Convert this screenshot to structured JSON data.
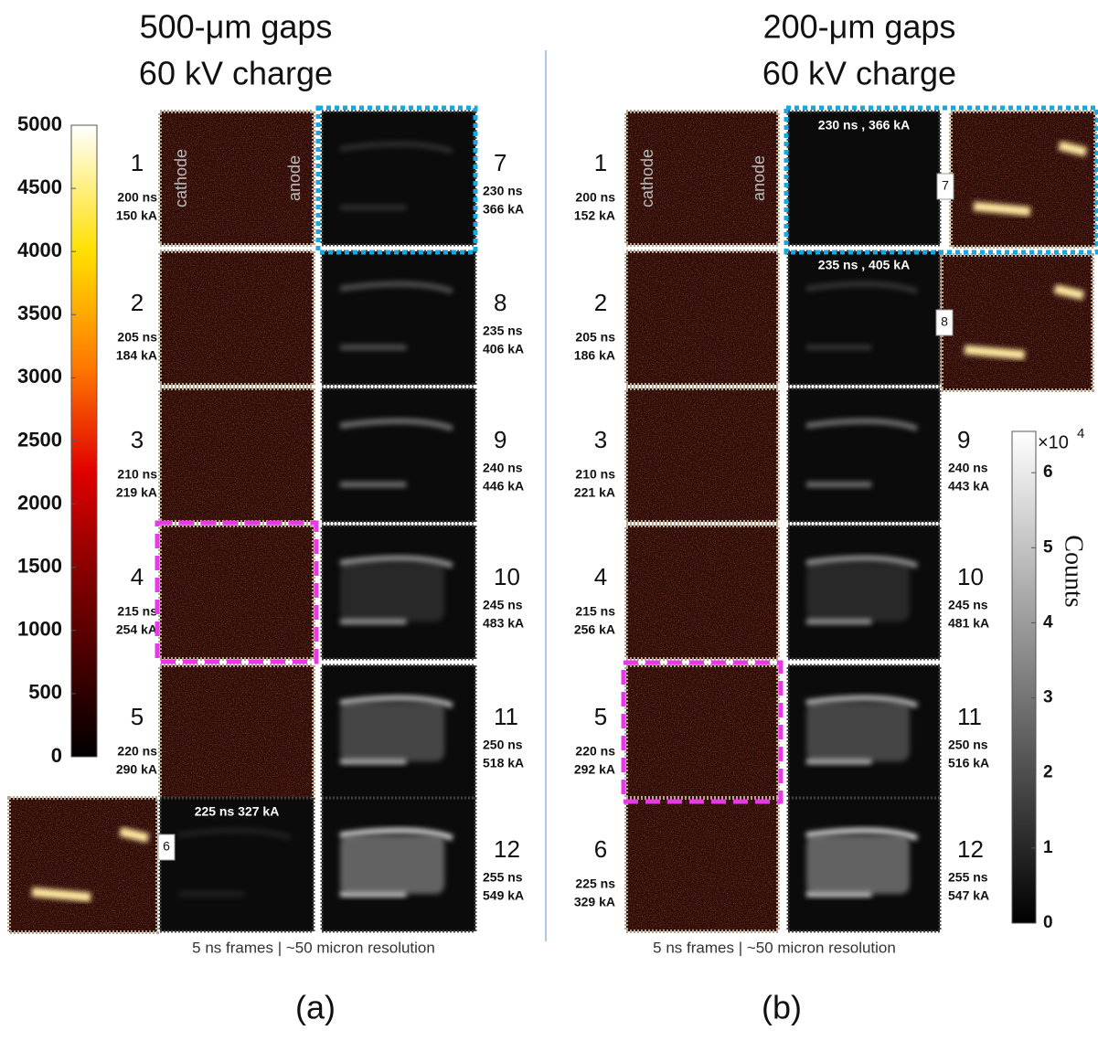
{
  "panels": [
    {
      "title_lines": [
        "500-μm gaps",
        "60 kV charge"
      ],
      "cathode": "cathode",
      "anode": "anode",
      "colorbar": {
        "lim": [
          0,
          5000
        ],
        "ticks": [
          0,
          500,
          1000,
          1500,
          2000,
          2500,
          3000,
          3500,
          4000,
          4500,
          5000
        ]
      },
      "frames": [
        {
          "number": "1",
          "time": "200 ns",
          "current": "150 kA"
        },
        {
          "number": "2",
          "time": "205 ns",
          "current": "184 kA"
        },
        {
          "number": "3",
          "time": "210 ns",
          "current": "219 kA"
        },
        {
          "number": "4",
          "time": "215 ns",
          "current": "254 kA"
        },
        {
          "number": "5",
          "time": "220 ns",
          "current": "290 kA"
        },
        {
          "number": "6",
          "caption": "225 ns 327 kA"
        },
        {
          "number": "7",
          "time": "230 ns",
          "current": "366 kA"
        },
        {
          "number": "8",
          "time": "235 ns",
          "current": "406 kA"
        },
        {
          "number": "9",
          "time": "240 ns",
          "current": "446 kA"
        },
        {
          "number": "10",
          "time": "245 ns",
          "current": "483 kA"
        },
        {
          "number": "11",
          "time": "250 ns",
          "current": "518 kA"
        },
        {
          "number": "12",
          "time": "255 ns",
          "current": "549 kA"
        }
      ],
      "footer": "5 ns frames | ~50 micron resolution",
      "label": "(a)"
    },
    {
      "title_lines": [
        "200-μm gaps",
        "60 kV charge"
      ],
      "cathode": "cathode",
      "anode": "anode",
      "colorbar": {
        "lim": [
          0,
          6.55
        ],
        "ticks": [
          0,
          1,
          2,
          3,
          4,
          5,
          6
        ],
        "multiplier": {
          "base": "×10",
          "exponent": "4"
        },
        "label": "Counts"
      },
      "frames": [
        {
          "number": "1",
          "time": "200 ns",
          "current": "152 kA"
        },
        {
          "number": "2",
          "time": "205 ns",
          "current": "186 kA"
        },
        {
          "number": "3",
          "time": "210 ns",
          "current": "221 kA"
        },
        {
          "number": "4",
          "time": "215 ns",
          "current": "256 kA"
        },
        {
          "number": "5",
          "time": "220 ns",
          "current": "292 kA"
        },
        {
          "number": "6",
          "time": "225 ns",
          "current": "329 kA"
        },
        {
          "number": "7",
          "caption": "230 ns , 366 kA"
        },
        {
          "number": "8",
          "caption": "235 ns , 405 kA"
        },
        {
          "number": "9",
          "time": "240 ns",
          "current": "443 kA"
        },
        {
          "number": "10",
          "time": "245 ns",
          "current": "481 kA"
        },
        {
          "number": "11",
          "time": "250 ns",
          "current": "516 kA"
        },
        {
          "number": "12",
          "time": "255 ns",
          "current": "547 kA"
        }
      ],
      "footer": "5 ns frames | ~50 micron resolution",
      "label": "(b)"
    }
  ]
}
